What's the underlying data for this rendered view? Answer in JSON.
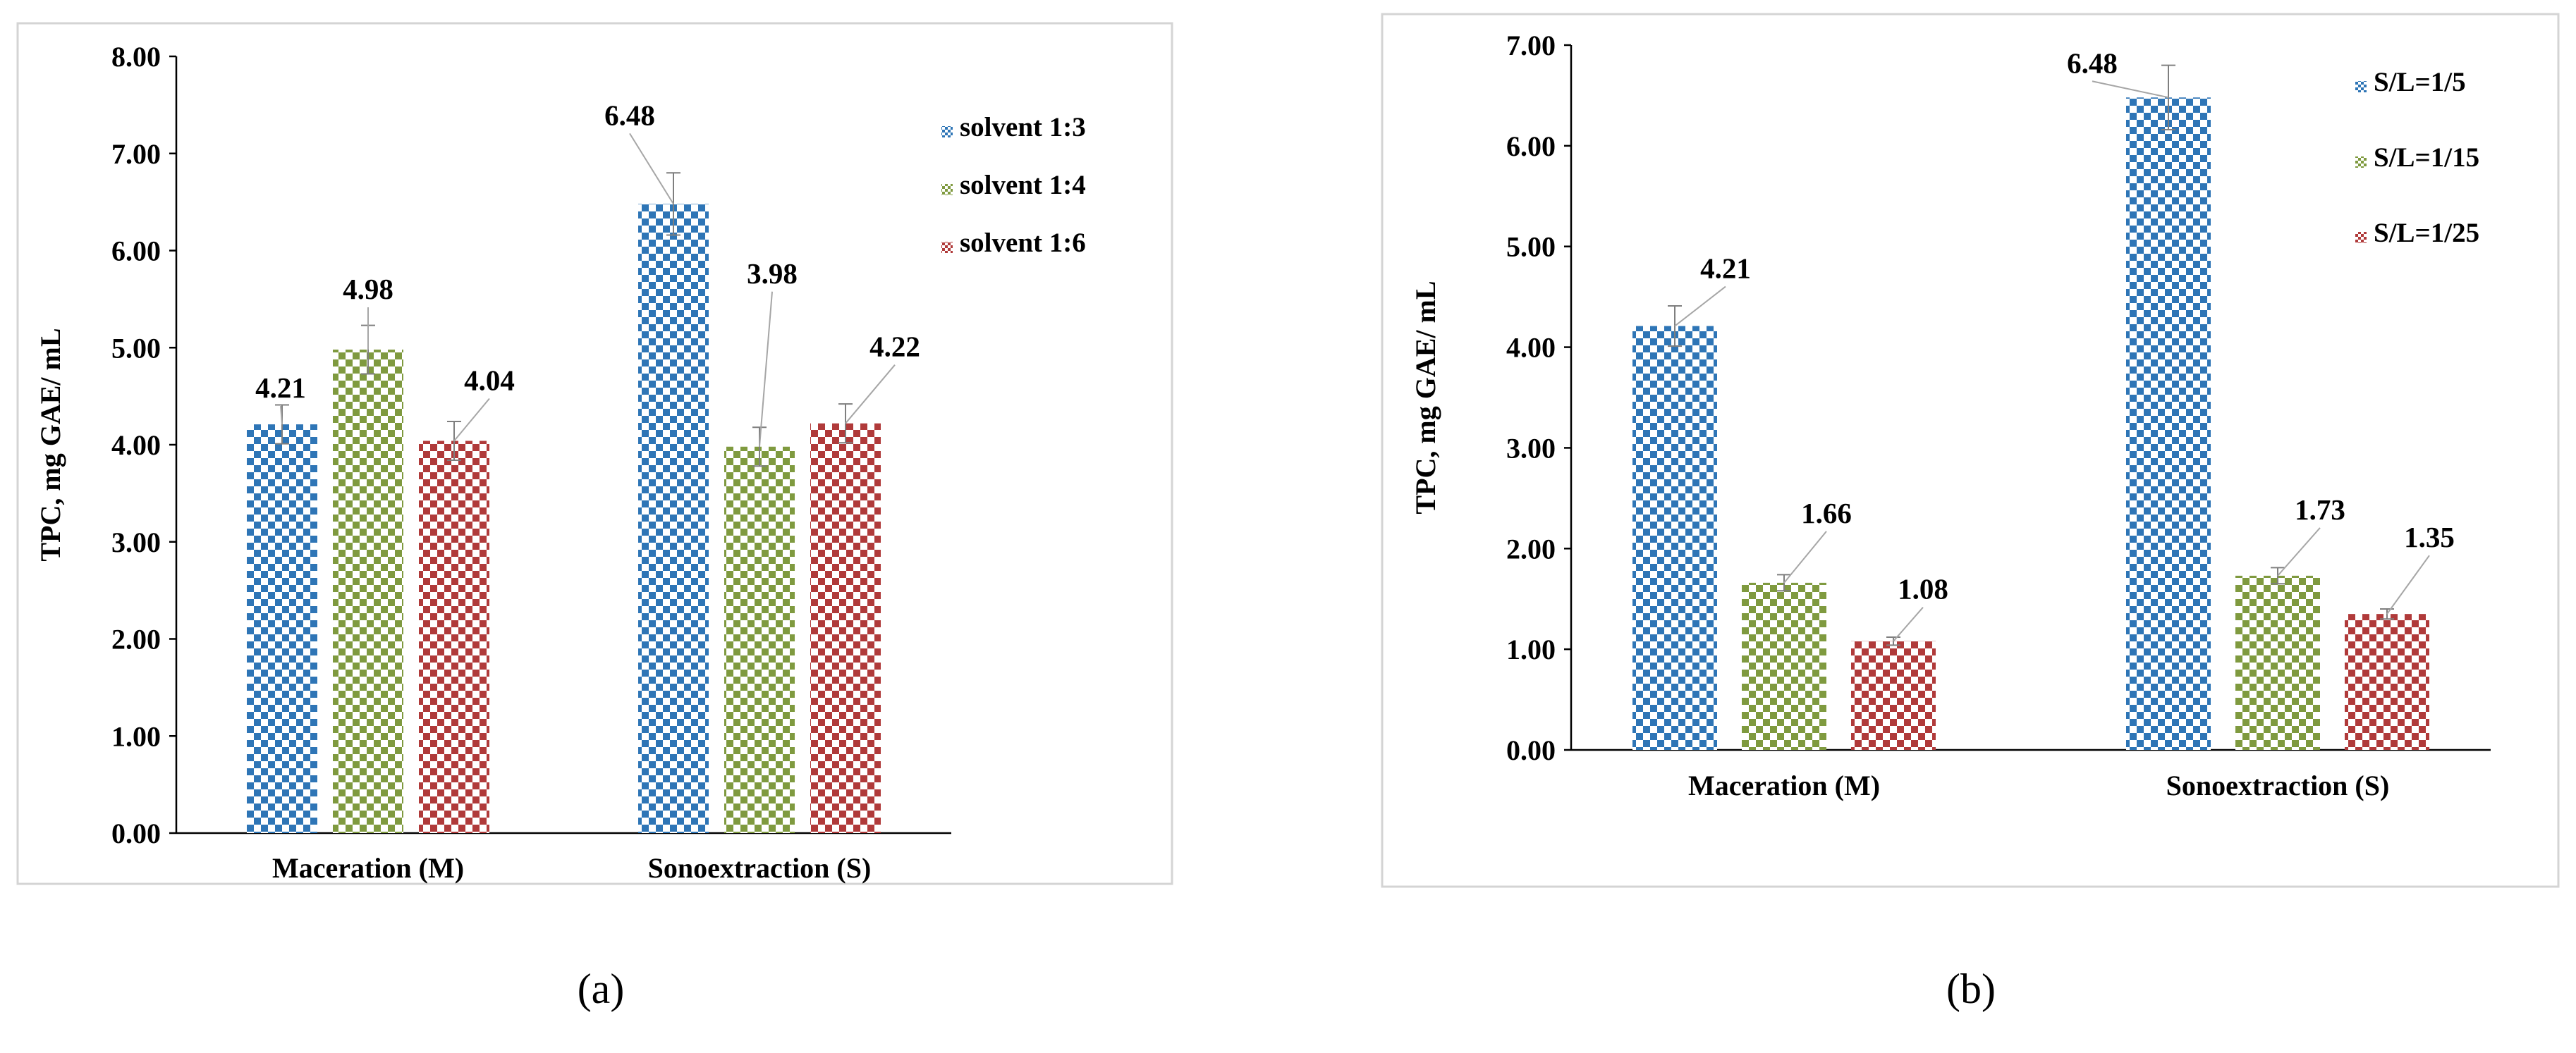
{
  "chart_data": [
    {
      "type": "bar",
      "panel_label": "(a)",
      "categories": [
        "Maceration (M)",
        "Sonoextraction (S)"
      ],
      "series": [
        {
          "name": "solvent 1:3",
          "color": "#2e75b6",
          "values": [
            4.21,
            6.48
          ],
          "errors": [
            0.2,
            0.32
          ]
        },
        {
          "name": "solvent 1:4",
          "color": "#7f9a3f",
          "values": [
            4.98,
            3.98
          ],
          "errors": [
            0.25,
            0.2
          ]
        },
        {
          "name": "solvent 1:6",
          "color": "#b03a3a",
          "values": [
            4.04,
            4.22
          ],
          "errors": [
            0.2,
            0.2
          ]
        }
      ],
      "data_labels": [
        [
          "4.21",
          "6.48"
        ],
        [
          "4.98",
          "3.98"
        ],
        [
          "4.04",
          "4.22"
        ]
      ],
      "ylabel": "TPC, mg GAE/ mL",
      "xlabel": "",
      "ylim": [
        0,
        8
      ],
      "yticks": [
        "0.00",
        "1.00",
        "2.00",
        "3.00",
        "4.00",
        "5.00",
        "6.00",
        "7.00",
        "8.00"
      ],
      "legend": "top-right",
      "grid": false
    },
    {
      "type": "bar",
      "panel_label": "(b)",
      "categories": [
        "Maceration (M)",
        "Sonoextraction (S)"
      ],
      "series": [
        {
          "name": "S/L=1/5",
          "color": "#2e75b6",
          "values": [
            4.21,
            6.48
          ],
          "errors": [
            0.2,
            0.32
          ]
        },
        {
          "name": "S/L=1/15",
          "color": "#7f9a3f",
          "values": [
            1.66,
            1.73
          ],
          "errors": [
            0.08,
            0.08
          ]
        },
        {
          "name": "S/L=1/25",
          "color": "#b03a3a",
          "values": [
            1.08,
            1.35
          ],
          "errors": [
            0.04,
            0.05
          ]
        }
      ],
      "data_labels": [
        [
          "4.21",
          "6.48"
        ],
        [
          "1.66",
          "1.73"
        ],
        [
          "1.08",
          "1.35"
        ]
      ],
      "ylabel": "TPC, mg GAE/ mL",
      "xlabel": "",
      "ylim": [
        0,
        7
      ],
      "yticks": [
        "0.00",
        "1.00",
        "2.00",
        "3.00",
        "4.00",
        "5.00",
        "6.00",
        "7.00"
      ],
      "legend": "top-right",
      "grid": false
    }
  ]
}
